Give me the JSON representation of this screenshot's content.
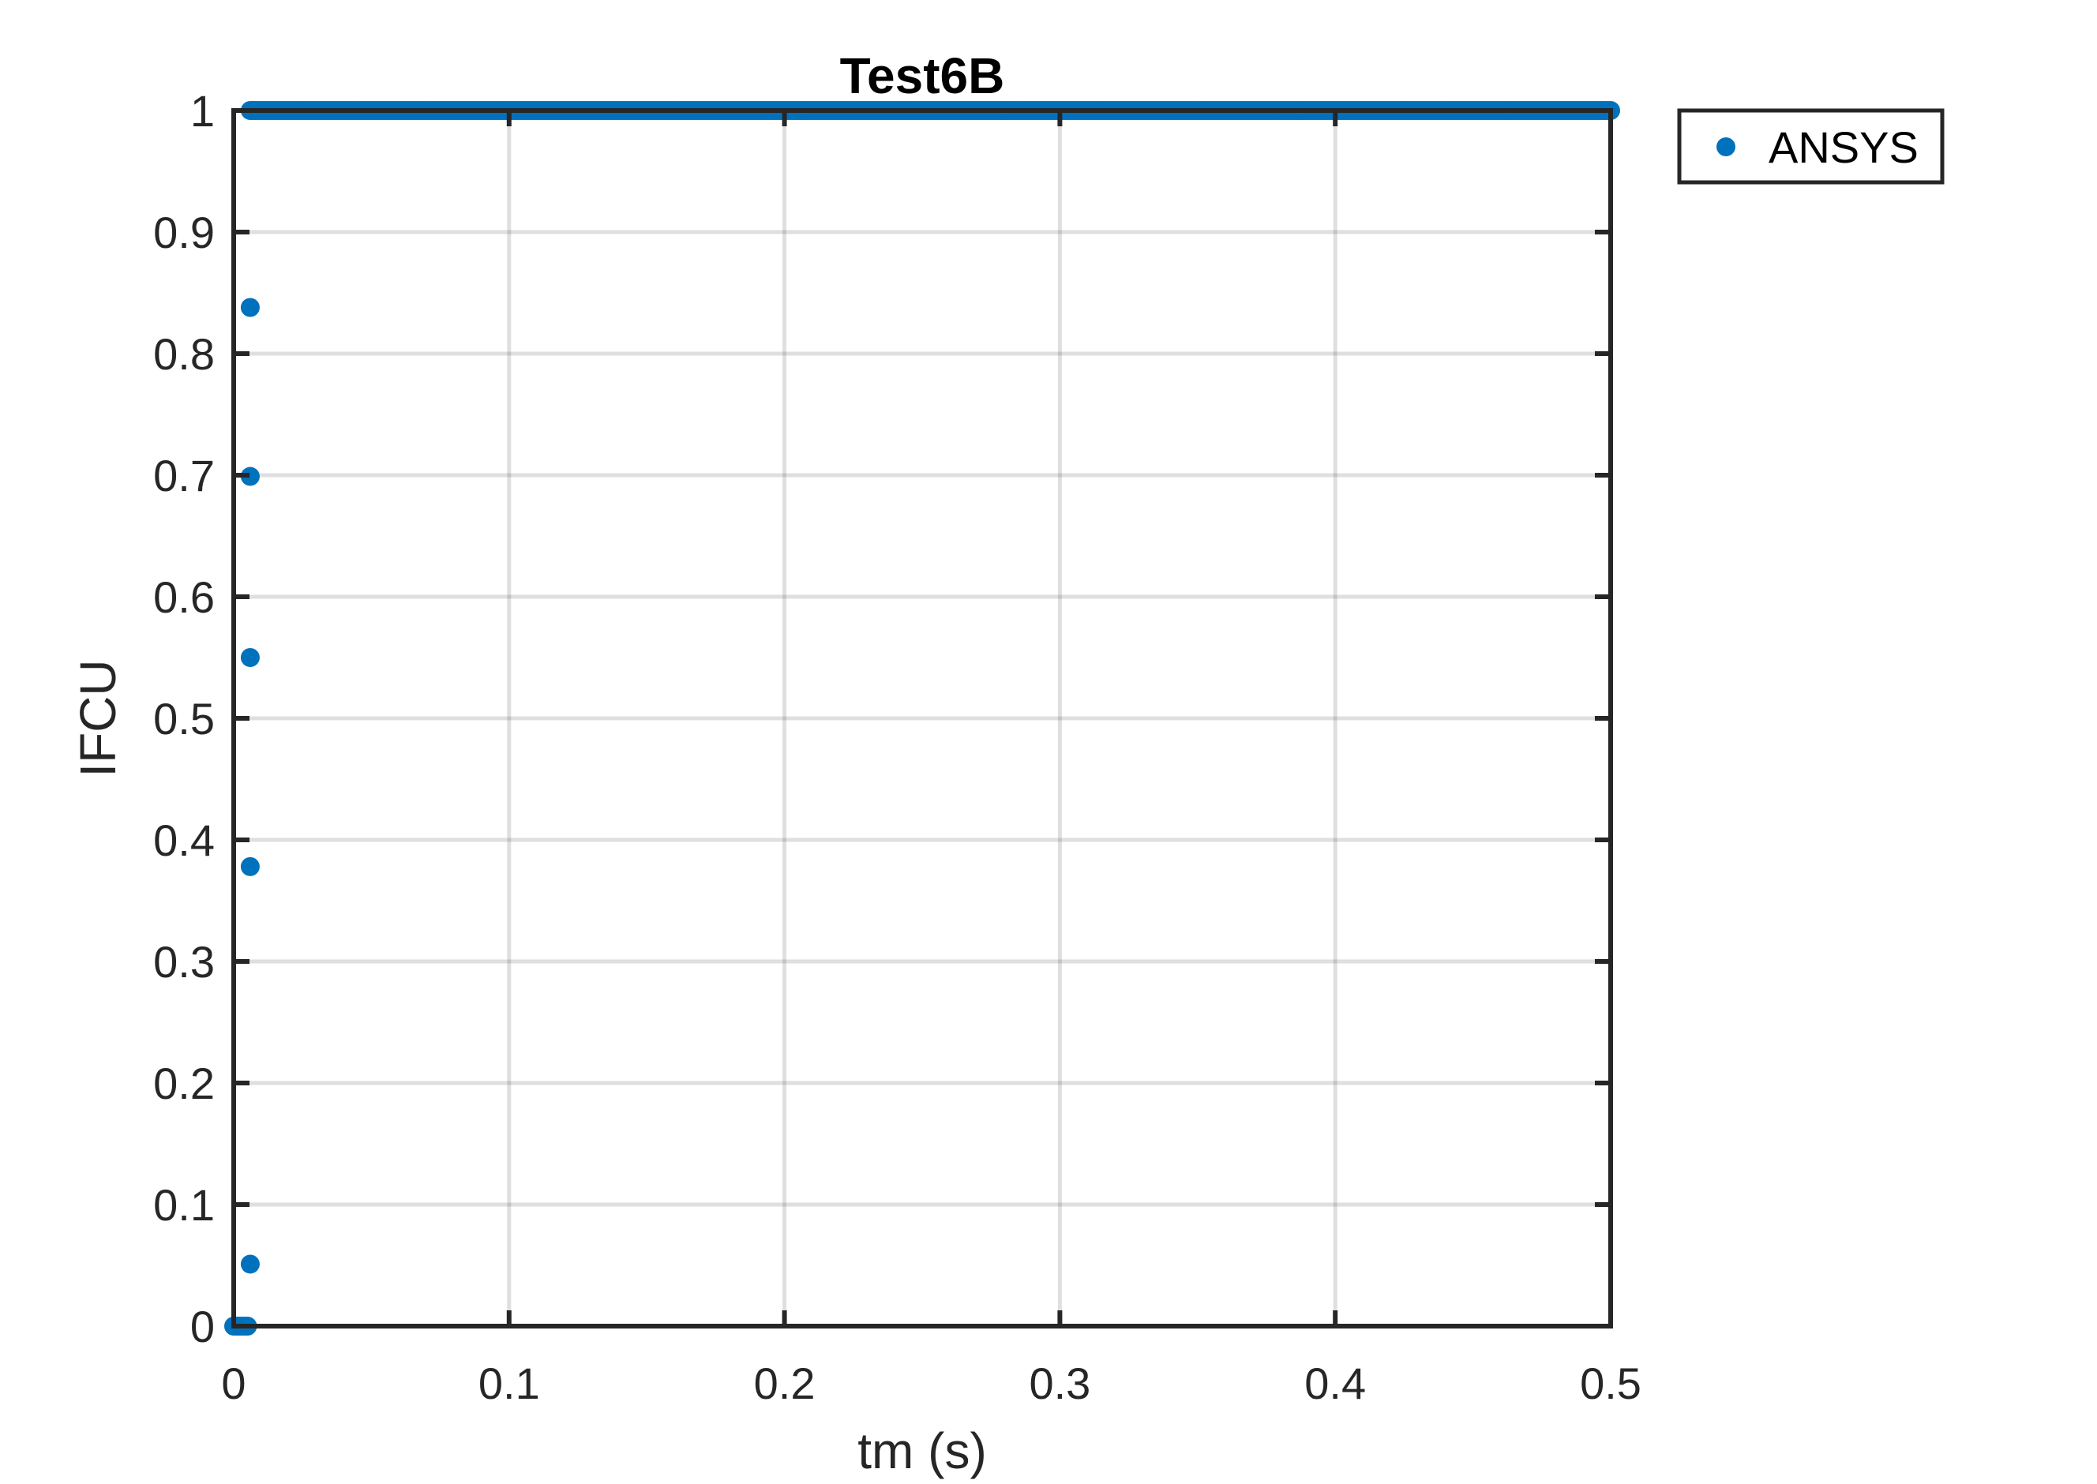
{
  "chart_data": {
    "type": "scatter",
    "title": "Test6B",
    "xlabel": "tm (s)",
    "ylabel": "IFCU",
    "xlim": [
      0,
      0.5
    ],
    "ylim": [
      0,
      1
    ],
    "xticks": [
      0,
      0.1,
      0.2,
      0.3,
      0.4,
      0.5
    ],
    "xtick_labels": [
      "0",
      "0.1",
      "0.2",
      "0.3",
      "0.4",
      "0.5"
    ],
    "yticks": [
      0,
      0.1,
      0.2,
      0.3,
      0.4,
      0.5,
      0.6,
      0.7,
      0.8,
      0.9,
      1
    ],
    "ytick_labels": [
      "0",
      "0.1",
      "0.2",
      "0.3",
      "0.4",
      "0.5",
      "0.6",
      "0.7",
      "0.8",
      "0.9",
      "1"
    ],
    "grid": true,
    "legend_position": "outside-top-right",
    "series": [
      {
        "name": "ANSYS",
        "color": "#0072BD",
        "marker": "dot",
        "x": [
          0.0,
          0.001,
          0.002,
          0.003,
          0.004,
          0.005,
          0.006,
          0.006,
          0.006,
          0.006,
          0.006,
          0.006,
          0.007
        ],
        "y": [
          0,
          0,
          0,
          0,
          0,
          0,
          0.051,
          0.378,
          0.55,
          0.699,
          0.838,
          1,
          1
        ],
        "constant_segment": {
          "x_start": 0.007,
          "x_end": 0.5,
          "step": 0.001,
          "y": 1
        }
      }
    ]
  }
}
